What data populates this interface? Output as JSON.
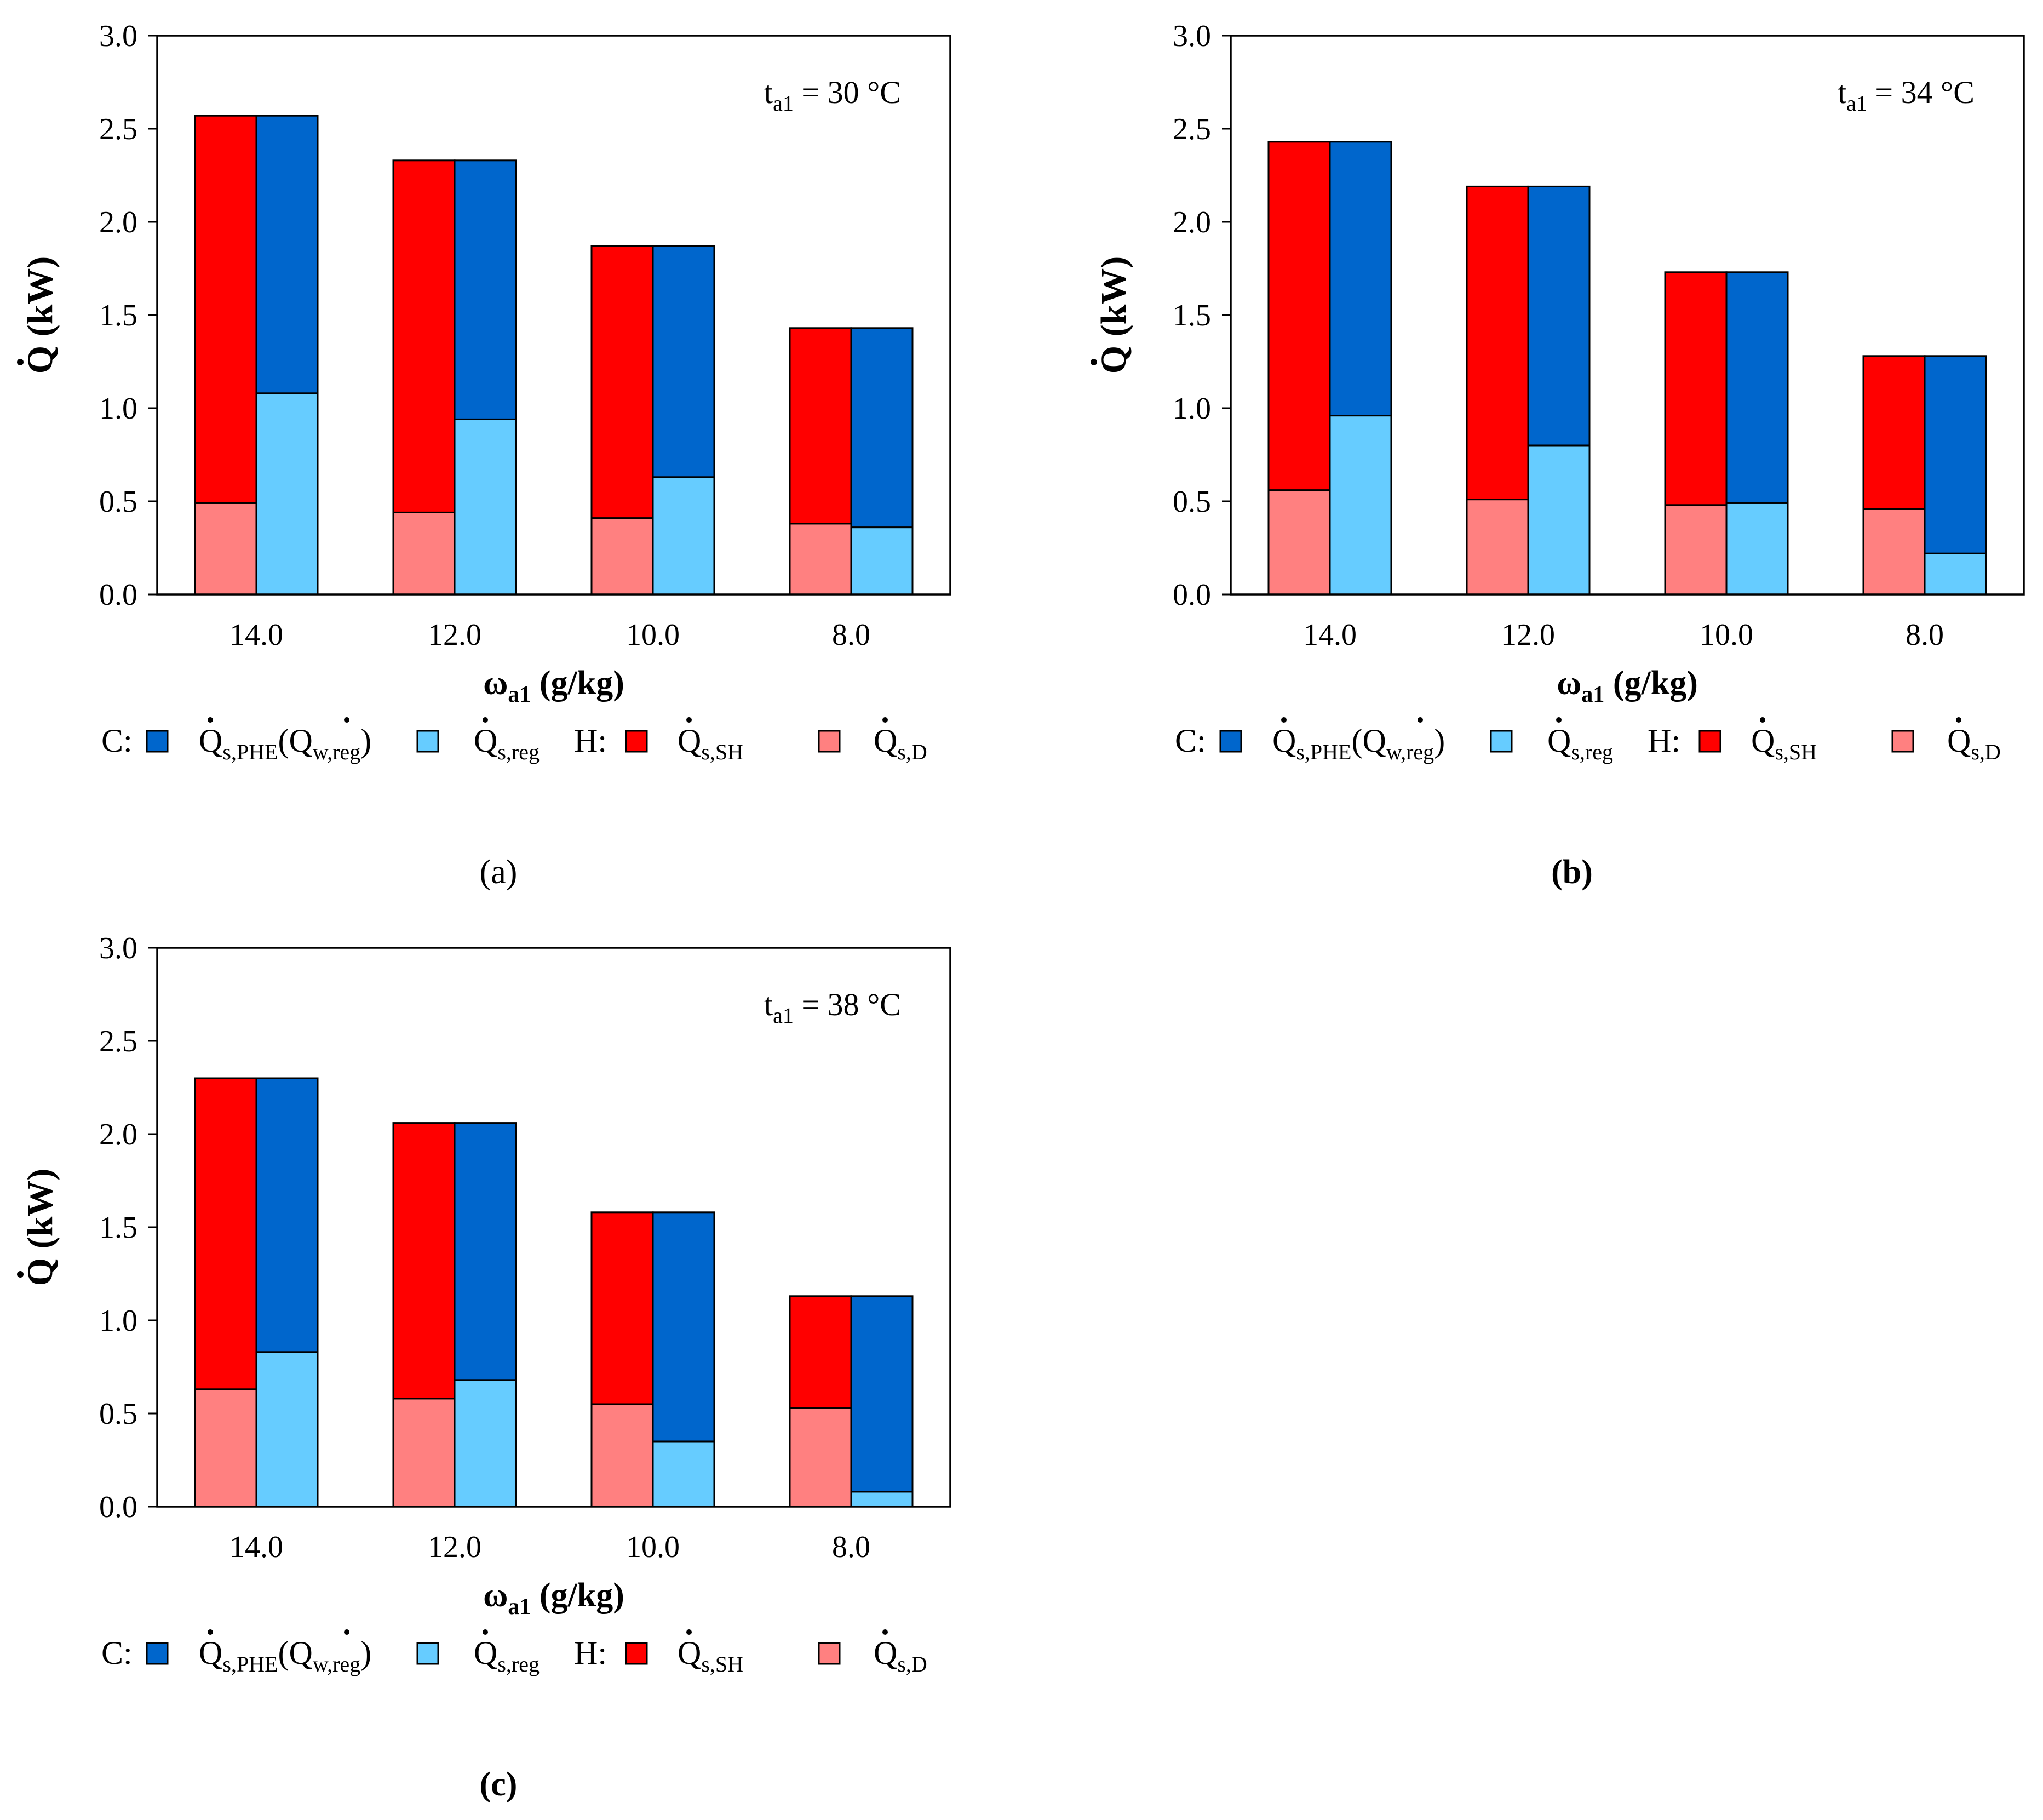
{
  "figure_labels": [
    "(a)",
    "(b)",
    "(c)"
  ],
  "colors": {
    "Qs_PHE": "#0066CC",
    "Qs_reg": "#66CCFF",
    "Qs_SH": "#FF0000",
    "Qs_D": "#FF8080",
    "axis": "#000000"
  },
  "legend": {
    "cooling_prefix": "C:",
    "heating_prefix": "H:",
    "items": [
      {
        "key": "Qs_PHE",
        "main": "Q",
        "sub": "s,PHE",
        "extra_open": "(",
        "extra_main": "Q",
        "extra_sub": "w,reg",
        "extra_close": ")"
      },
      {
        "key": "Qs_reg",
        "main": "Q",
        "sub": "s,reg"
      },
      {
        "key": "Qs_SH",
        "main": "Q",
        "sub": "s,SH"
      },
      {
        "key": "Qs_D",
        "main": "Q",
        "sub": "s,D"
      }
    ]
  },
  "chart_data": [
    {
      "type": "bar",
      "stacked": true,
      "label": "(a)",
      "annotation": {
        "text": "t",
        "sub": "a1",
        "rest": " = 30 °C"
      },
      "xlabel": {
        "main": "ω",
        "sub": "a1",
        "rest": " (g/kg)"
      },
      "ylabel": {
        "main": "Q",
        "rest": " (kW)"
      },
      "ylim": [
        0,
        3.0
      ],
      "yticks": [
        "0.0",
        "0.5",
        "1.0",
        "1.5",
        "2.0",
        "2.5",
        "3.0"
      ],
      "categories": [
        "14.0",
        "12.0",
        "10.0",
        "8.0"
      ],
      "heating": {
        "Qs_D": [
          0.49,
          0.44,
          0.41,
          0.38
        ],
        "Qs_SH_top": [
          2.57,
          2.33,
          1.87,
          1.43
        ]
      },
      "cooling": {
        "Qs_reg": [
          1.08,
          0.94,
          0.63,
          0.36
        ],
        "Qs_PHE_top": [
          2.57,
          2.33,
          1.87,
          1.43
        ]
      }
    },
    {
      "type": "bar",
      "stacked": true,
      "label": "(b)",
      "annotation": {
        "text": "t",
        "sub": "a1",
        "rest": " = 34 °C"
      },
      "xlabel": {
        "main": "ω",
        "sub": "a1",
        "rest": " (g/kg)"
      },
      "ylabel": {
        "main": "Q",
        "rest": " (kW)"
      },
      "ylim": [
        0,
        3.0
      ],
      "yticks": [
        "0.0",
        "0.5",
        "1.0",
        "1.5",
        "2.0",
        "2.5",
        "3.0"
      ],
      "categories": [
        "14.0",
        "12.0",
        "10.0",
        "8.0"
      ],
      "heating": {
        "Qs_D": [
          0.56,
          0.51,
          0.48,
          0.46
        ],
        "Qs_SH_top": [
          2.43,
          2.19,
          1.73,
          1.28
        ]
      },
      "cooling": {
        "Qs_reg": [
          0.96,
          0.8,
          0.49,
          0.22
        ],
        "Qs_PHE_top": [
          2.43,
          2.19,
          1.73,
          1.28
        ]
      }
    },
    {
      "type": "bar",
      "stacked": true,
      "label": "(c)",
      "annotation": {
        "text": "t",
        "sub": "a1",
        "rest": " = 38 °C"
      },
      "xlabel": {
        "main": "ω",
        "sub": "a1",
        "rest": " (g/kg)"
      },
      "ylabel": {
        "main": "Q",
        "rest": " (kW)"
      },
      "ylim": [
        0,
        3.0
      ],
      "yticks": [
        "0.0",
        "0.5",
        "1.0",
        "1.5",
        "2.0",
        "2.5",
        "3.0"
      ],
      "categories": [
        "14.0",
        "12.0",
        "10.0",
        "8.0"
      ],
      "heating": {
        "Qs_D": [
          0.63,
          0.58,
          0.55,
          0.53
        ],
        "Qs_SH_top": [
          2.3,
          2.06,
          1.58,
          1.13
        ]
      },
      "cooling": {
        "Qs_reg": [
          0.83,
          0.68,
          0.35,
          0.08
        ],
        "Qs_PHE_top": [
          2.3,
          2.06,
          1.58,
          1.13
        ]
      }
    }
  ]
}
